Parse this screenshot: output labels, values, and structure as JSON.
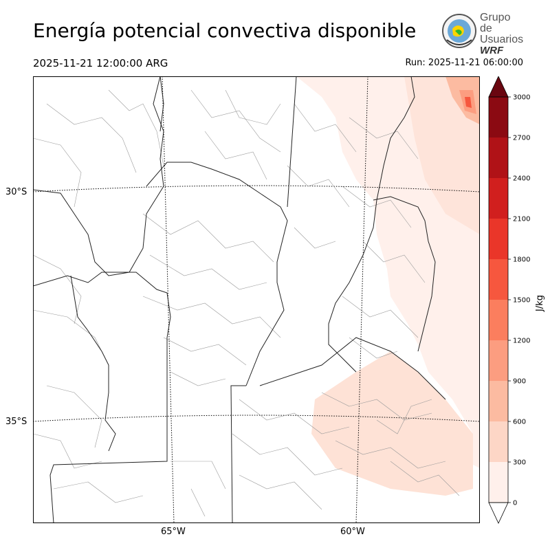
{
  "header": {
    "title": "Energía potencial convectiva disponible",
    "valid_time": "2025-11-21 12:00:00 ARG",
    "run_time": "Run: 2025-11-21 06:00:00"
  },
  "logo": {
    "line1": "Grupo de",
    "line2": "Usuarios",
    "line3": "WRF"
  },
  "map": {
    "lat_labels": [
      "30°S",
      "35°S"
    ],
    "lon_labels": [
      "65°W",
      "60°W"
    ]
  },
  "colorbar": {
    "unit_label": "J/kg",
    "ticks": [
      "0",
      "300",
      "600",
      "900",
      "1200",
      "1500",
      "1800",
      "2100",
      "2400",
      "2700",
      "3000"
    ],
    "colors": [
      "#fff0eb",
      "#fdd6c6",
      "#fcbba1",
      "#fc9d80",
      "#fb7e5e",
      "#f6573e",
      "#ea3629",
      "#d11f1e",
      "#b01217",
      "#8b0a12",
      "#6a0610"
    ],
    "extend": "both"
  }
}
